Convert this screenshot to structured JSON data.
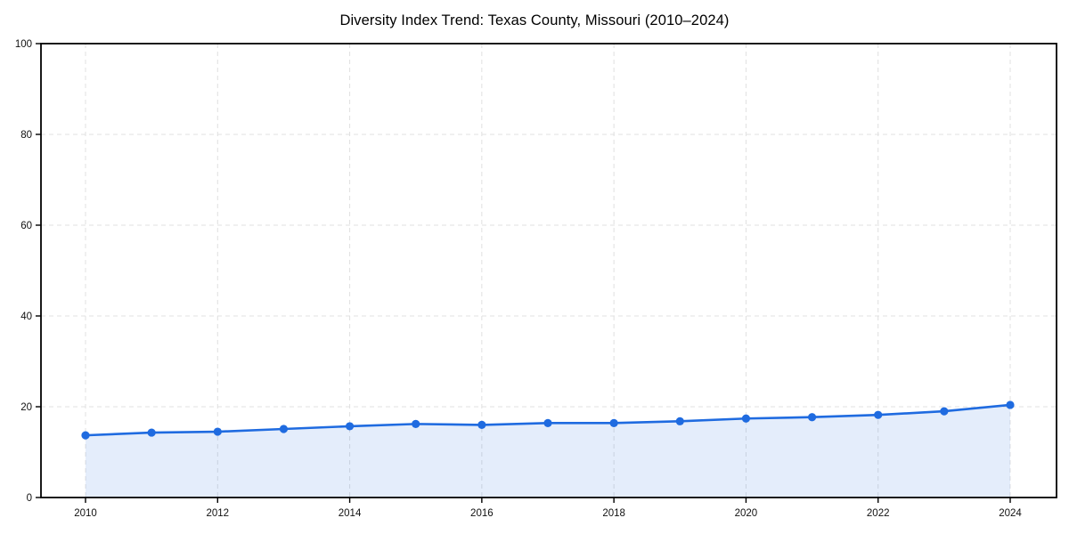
{
  "chart_data": {
    "type": "line",
    "title": "Diversity Index Trend: Texas County, Missouri (2010–2024)",
    "xlabel": "",
    "ylabel": "",
    "x": [
      2010,
      2011,
      2012,
      2013,
      2014,
      2015,
      2016,
      2017,
      2018,
      2019,
      2020,
      2021,
      2022,
      2023,
      2024
    ],
    "values": [
      13.7,
      14.3,
      14.5,
      15.1,
      15.7,
      16.2,
      16.0,
      16.4,
      16.4,
      16.8,
      17.4,
      17.7,
      18.2,
      19.0,
      20.4
    ],
    "series_name": "Diversity Index",
    "ylim": [
      0,
      100
    ],
    "yticks": [
      0,
      20,
      40,
      60,
      80,
      100
    ],
    "xticks": [
      2010,
      2012,
      2014,
      2016,
      2018,
      2020,
      2022,
      2024
    ],
    "grid": true,
    "grid_style": "dashed",
    "legend_position": "none",
    "marker": "circle",
    "area_fill": true,
    "colors": {
      "line": "#1f6be0",
      "marker": "#1f6be0",
      "fill": "rgba(31,107,224,0.12)",
      "grid": "#e0e0e0",
      "axis": "#000000",
      "tick_label": "#111111",
      "background": "#ffffff"
    }
  }
}
